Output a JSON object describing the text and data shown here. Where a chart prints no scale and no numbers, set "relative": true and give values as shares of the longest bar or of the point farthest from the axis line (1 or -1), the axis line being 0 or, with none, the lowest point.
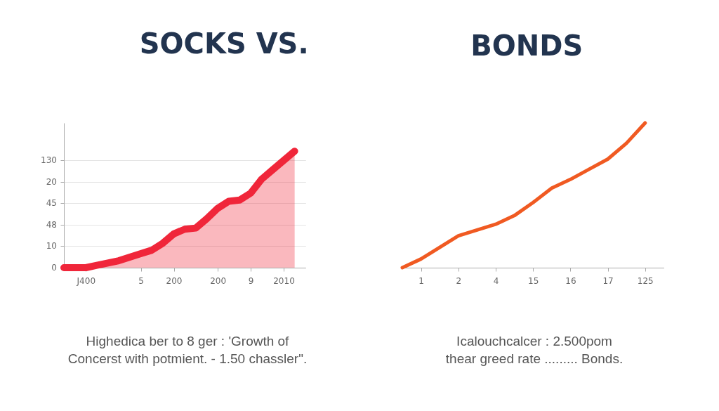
{
  "chart_data": [
    {
      "type": "area",
      "title": "SOCKS VS.",
      "categories": [
        null,
        null,
        "J400",
        null,
        null,
        null,
        null,
        "5",
        null,
        null,
        "200",
        null,
        null,
        null,
        "200",
        null,
        null,
        "9",
        null,
        null,
        "2010",
        null,
        null
      ],
      "series": [
        {
          "color": "#f0263a",
          "values": [
            0,
            0,
            0,
            0.02,
            0.04,
            0.06,
            0.09,
            0.12,
            0.15,
            0.21,
            0.29,
            0.33,
            0.34,
            0.42,
            0.51,
            0.57,
            0.58,
            0.64,
            0.76,
            0.84,
            0.92,
            1,
            null
          ]
        }
      ],
      "relative": true,
      "grid": "y",
      "annotations": [
        "130",
        "20",
        "45",
        "48",
        "10",
        "0",
        "Highedica ber to 8 ger : 'Growth of",
        "Concerst with potmient. - 1.50 chassler\"."
      ]
    },
    {
      "type": "line",
      "title": "BONDS",
      "categories": [
        null,
        "1",
        null,
        "2",
        null,
        "4",
        null,
        "15",
        null,
        "16",
        null,
        "17",
        null,
        "125",
        null
      ],
      "series": [
        {
          "color": "#f05a22",
          "values": [
            0,
            0.06,
            0.14,
            0.22,
            0.26,
            0.3,
            0.36,
            0.45,
            0.55,
            0.61,
            0.68,
            0.75,
            0.86,
            1,
            null
          ]
        }
      ],
      "relative": true,
      "annotations": [
        "Icalouchcalcer : 2.500pom",
        "thear greed rate ......... Bonds."
      ]
    }
  ]
}
